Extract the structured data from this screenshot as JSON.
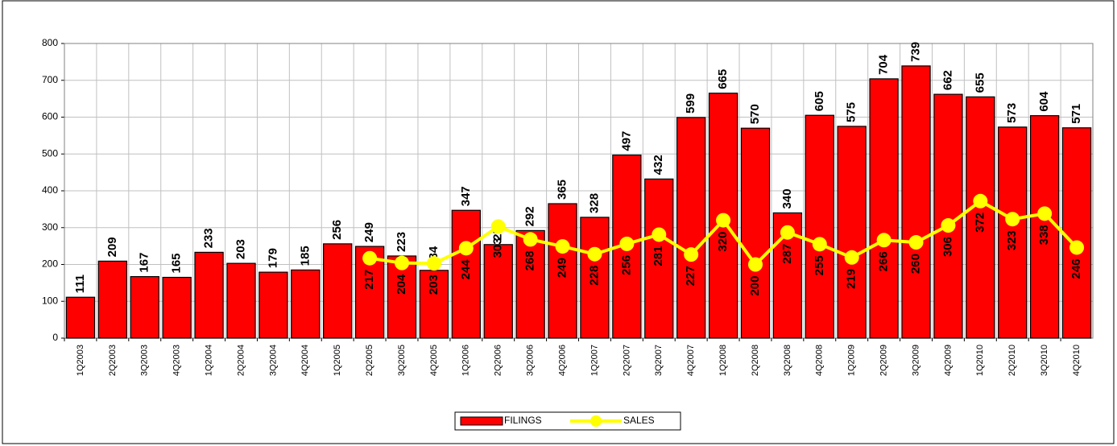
{
  "chart_data": {
    "type": "bar",
    "categories": [
      "1Q2003",
      "2Q2003",
      "3Q2003",
      "4Q2003",
      "1Q2004",
      "2Q2004",
      "3Q2004",
      "4Q2004",
      "1Q2005",
      "2Q2005",
      "3Q2005",
      "4Q2005",
      "1Q2006",
      "2Q2006",
      "3Q2006",
      "4Q2006",
      "1Q2007",
      "2Q2007",
      "3Q2007",
      "4Q2007",
      "1Q2008",
      "2Q2008",
      "3Q2008",
      "4Q2008",
      "1Q2009",
      "2Q2009",
      "3Q2009",
      "4Q2009",
      "1Q2010",
      "2Q2010",
      "3Q2010",
      "4Q2010"
    ],
    "series": [
      {
        "name": "FILINGS",
        "type": "bar",
        "color": "#ff0000",
        "values": [
          111,
          209,
          167,
          165,
          233,
          203,
          179,
          185,
          256,
          249,
          223,
          184,
          347,
          254,
          292,
          365,
          328,
          497,
          432,
          599,
          665,
          570,
          340,
          605,
          575,
          704,
          739,
          662,
          655,
          573,
          604,
          571
        ]
      },
      {
        "name": "SALES",
        "type": "line",
        "color": "#ffff00",
        "values": [
          null,
          null,
          null,
          null,
          null,
          null,
          null,
          null,
          null,
          217,
          204,
          203,
          244,
          303,
          268,
          249,
          228,
          256,
          281,
          227,
          320,
          200,
          287,
          255,
          219,
          266,
          260,
          306,
          372,
          323,
          338,
          246
        ]
      }
    ],
    "ylim": [
      0,
      800
    ],
    "yticks": [
      0,
      100,
      200,
      300,
      400,
      500,
      600,
      700,
      800
    ],
    "grid": true,
    "legend": "bottom"
  }
}
